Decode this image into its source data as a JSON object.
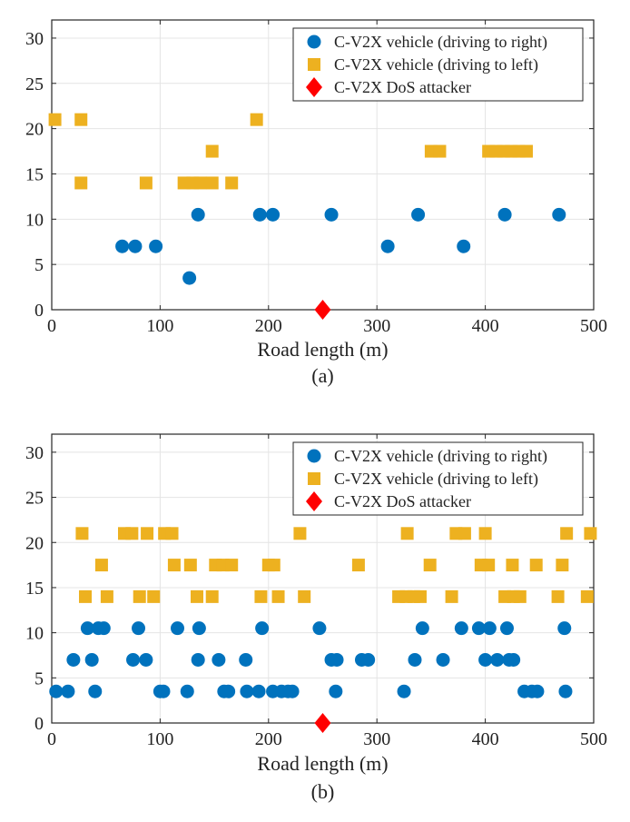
{
  "chart_data": [
    {
      "panel_label": "(a)",
      "type": "scatter",
      "xlabel": "Road length (m)",
      "ylabel": "",
      "xlim": [
        0,
        500
      ],
      "ylim": [
        0,
        32
      ],
      "xticks": [
        0,
        100,
        200,
        300,
        400,
        500
      ],
      "yticks": [
        0,
        5,
        10,
        15,
        20,
        25,
        30
      ],
      "grid": true,
      "legend_position": "top-right",
      "series": [
        {
          "name": "C-V2X vehicle (driving to right)",
          "marker": "circle",
          "color": "#0072BD",
          "points": [
            [
              65,
              7
            ],
            [
              77,
              7
            ],
            [
              96,
              7
            ],
            [
              127,
              3.5
            ],
            [
              135,
              10.5
            ],
            [
              192,
              10.5
            ],
            [
              204,
              10.5
            ],
            [
              258,
              10.5
            ],
            [
              310,
              7
            ],
            [
              338,
              10.5
            ],
            [
              380,
              7
            ],
            [
              418,
              10.5
            ],
            [
              468,
              10.5
            ]
          ]
        },
        {
          "name": "C-V2X vehicle (driving to left)",
          "marker": "square",
          "color": "#EDB120",
          "points": [
            [
              3,
              21
            ],
            [
              27,
              21
            ],
            [
              27,
              14
            ],
            [
              87,
              14
            ],
            [
              122,
              14
            ],
            [
              130,
              14
            ],
            [
              137,
              14
            ],
            [
              148,
              14
            ],
            [
              148,
              17.5
            ],
            [
              166,
              14
            ],
            [
              189,
              21
            ],
            [
              350,
              17.5
            ],
            [
              358,
              17.5
            ],
            [
              403,
              17.5
            ],
            [
              410,
              17.5
            ],
            [
              417,
              17.5
            ],
            [
              424,
              17.5
            ],
            [
              431,
              17.5
            ],
            [
              438,
              17.5
            ]
          ]
        },
        {
          "name": "C-V2X DoS attacker",
          "marker": "diamond",
          "color": "#FF0000",
          "points": [
            [
              250,
              0
            ]
          ]
        }
      ]
    },
    {
      "panel_label": "(b)",
      "type": "scatter",
      "xlabel": "Road length (m)",
      "ylabel": "",
      "xlim": [
        0,
        500
      ],
      "ylim": [
        0,
        32
      ],
      "xticks": [
        0,
        100,
        200,
        300,
        400,
        500
      ],
      "yticks": [
        0,
        5,
        10,
        15,
        20,
        25,
        30
      ],
      "grid": true,
      "legend_position": "top-right",
      "series": [
        {
          "name": "C-V2X vehicle (driving to right)",
          "marker": "circle",
          "color": "#0072BD",
          "points": [
            [
              4,
              3.5
            ],
            [
              15,
              3.5
            ],
            [
              20,
              7
            ],
            [
              33,
              10.5
            ],
            [
              37,
              7
            ],
            [
              40,
              3.5
            ],
            [
              43,
              10.5
            ],
            [
              48,
              10.5
            ],
            [
              75,
              7
            ],
            [
              80,
              10.5
            ],
            [
              87,
              7
            ],
            [
              100,
              3.5
            ],
            [
              103,
              3.5
            ],
            [
              116,
              10.5
            ],
            [
              125,
              3.5
            ],
            [
              135,
              7
            ],
            [
              136,
              10.5
            ],
            [
              154,
              7
            ],
            [
              159,
              3.5
            ],
            [
              163,
              3.5
            ],
            [
              179,
              7
            ],
            [
              180,
              3.5
            ],
            [
              191,
              3.5
            ],
            [
              194,
              10.5
            ],
            [
              204,
              3.5
            ],
            [
              212,
              3.5
            ],
            [
              218,
              3.5
            ],
            [
              222,
              3.5
            ],
            [
              247,
              10.5
            ],
            [
              258,
              7
            ],
            [
              262,
              3.5
            ],
            [
              263,
              7
            ],
            [
              286,
              7
            ],
            [
              292,
              7
            ],
            [
              325,
              3.5
            ],
            [
              335,
              7
            ],
            [
              342,
              10.5
            ],
            [
              361,
              7
            ],
            [
              378,
              10.5
            ],
            [
              394,
              10.5
            ],
            [
              400,
              7
            ],
            [
              404,
              10.5
            ],
            [
              411,
              7
            ],
            [
              420,
              10.5
            ],
            [
              422,
              7
            ],
            [
              426,
              7
            ],
            [
              436,
              3.5
            ],
            [
              443,
              3.5
            ],
            [
              448,
              3.5
            ],
            [
              473,
              10.5
            ],
            [
              474,
              3.5
            ]
          ]
        },
        {
          "name": "C-V2X vehicle (driving to left)",
          "marker": "square",
          "color": "#EDB120",
          "points": [
            [
              28,
              21
            ],
            [
              31,
              14
            ],
            [
              46,
              17.5
            ],
            [
              51,
              14
            ],
            [
              67,
              21
            ],
            [
              74,
              21
            ],
            [
              81,
              14
            ],
            [
              88,
              21
            ],
            [
              94,
              14
            ],
            [
              104,
              21
            ],
            [
              111,
              21
            ],
            [
              113,
              17.5
            ],
            [
              128,
              17.5
            ],
            [
              134,
              14
            ],
            [
              148,
              14
            ],
            [
              151,
              17.5
            ],
            [
              158,
              17.5
            ],
            [
              166,
              17.5
            ],
            [
              193,
              14
            ],
            [
              200,
              17.5
            ],
            [
              205,
              17.5
            ],
            [
              209,
              14
            ],
            [
              229,
              21
            ],
            [
              233,
              14
            ],
            [
              283,
              17.5
            ],
            [
              320,
              14
            ],
            [
              327,
              14
            ],
            [
              328,
              21
            ],
            [
              334,
              14
            ],
            [
              340,
              14
            ],
            [
              349,
              17.5
            ],
            [
              369,
              14
            ],
            [
              373,
              21
            ],
            [
              381,
              21
            ],
            [
              396,
              17.5
            ],
            [
              400,
              21
            ],
            [
              403,
              17.5
            ],
            [
              418,
              14
            ],
            [
              425,
              17.5
            ],
            [
              426,
              14
            ],
            [
              432,
              14
            ],
            [
              447,
              17.5
            ],
            [
              467,
              14
            ],
            [
              471,
              17.5
            ],
            [
              475,
              21
            ],
            [
              494,
              14
            ],
            [
              497,
              21
            ]
          ]
        },
        {
          "name": "C-V2X DoS attacker",
          "marker": "diamond",
          "color": "#FF0000",
          "points": [
            [
              250,
              0
            ]
          ]
        }
      ]
    }
  ]
}
